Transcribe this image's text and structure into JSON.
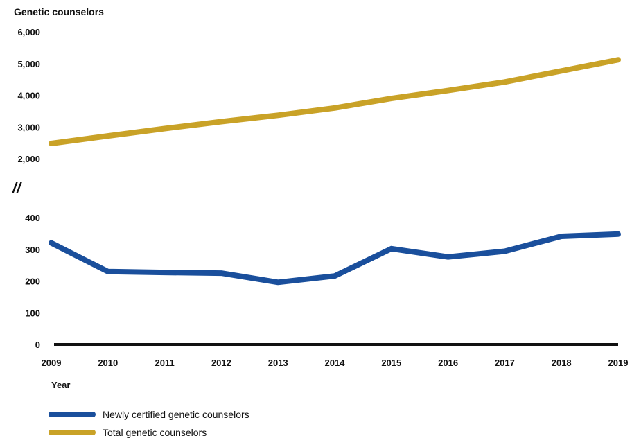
{
  "chart_data": {
    "type": "line",
    "title": "Genetic counselors",
    "xlabel": "Year",
    "x": [
      2009,
      2010,
      2011,
      2012,
      2013,
      2014,
      2015,
      2016,
      2017,
      2018,
      2019
    ],
    "upper_axis": {
      "ylim": [
        2000,
        6000
      ],
      "ticks": [
        "2,000",
        "3,000",
        "4,000",
        "5,000",
        "6,000"
      ]
    },
    "lower_axis": {
      "ylim": [
        0,
        400
      ],
      "ticks": [
        "0",
        "100",
        "200",
        "300",
        "400"
      ]
    },
    "axis_break": "//",
    "series": [
      {
        "name": "Newly certified genetic counselors",
        "color": "#1a4f9c",
        "axis": "lower",
        "values": [
          320,
          230,
          227,
          225,
          196,
          216,
          302,
          276,
          294,
          341,
          348
        ]
      },
      {
        "name": "Total genetic counselors",
        "color": "#c9a227",
        "axis": "upper",
        "values": [
          2480,
          2720,
          2950,
          3170,
          3370,
          3600,
          3900,
          4150,
          4420,
          4770,
          5120
        ]
      }
    ],
    "legend": "bottom-left",
    "grid": false
  }
}
